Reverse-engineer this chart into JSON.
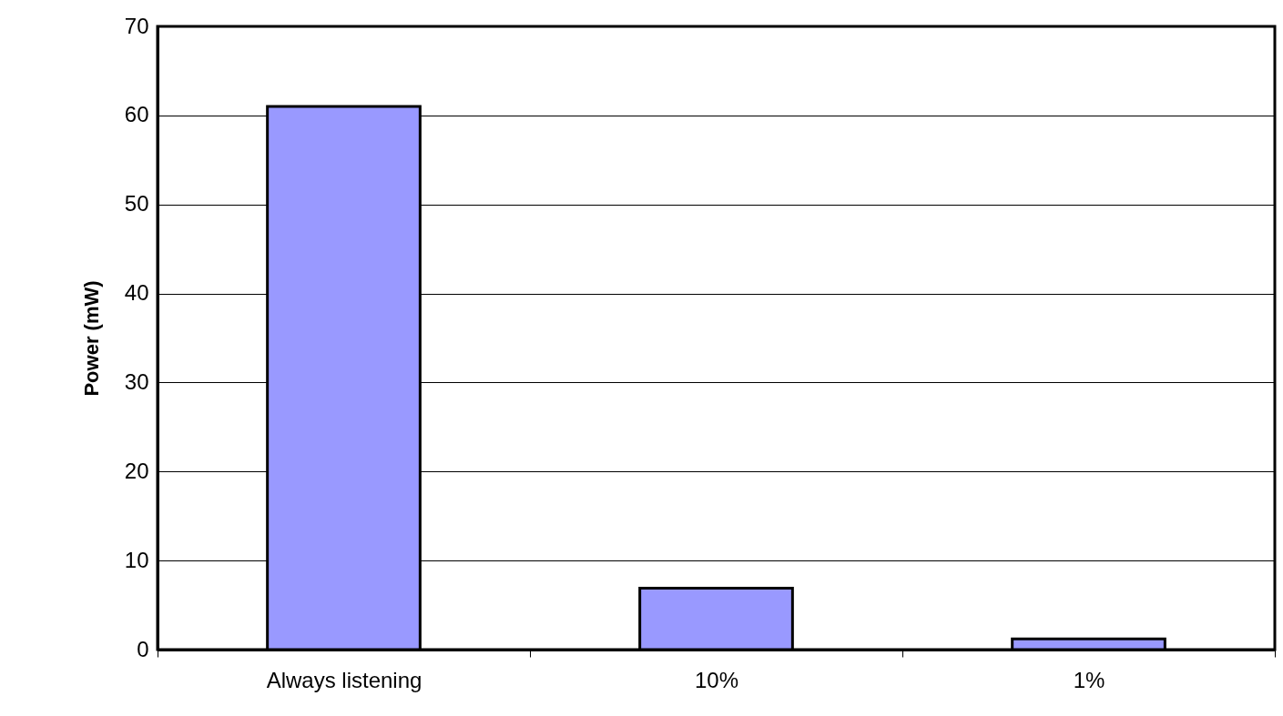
{
  "chart_data": {
    "type": "bar",
    "ylabel": "Power (mW)",
    "categories": [
      "Always listening",
      "10%",
      "1%"
    ],
    "values": [
      61,
      6.9,
      1.2
    ],
    "color": "#9999ff",
    "ylim": [
      0,
      70
    ],
    "yticks": [
      0,
      10,
      20,
      30,
      40,
      50,
      60,
      70
    ],
    "grid": "y"
  }
}
